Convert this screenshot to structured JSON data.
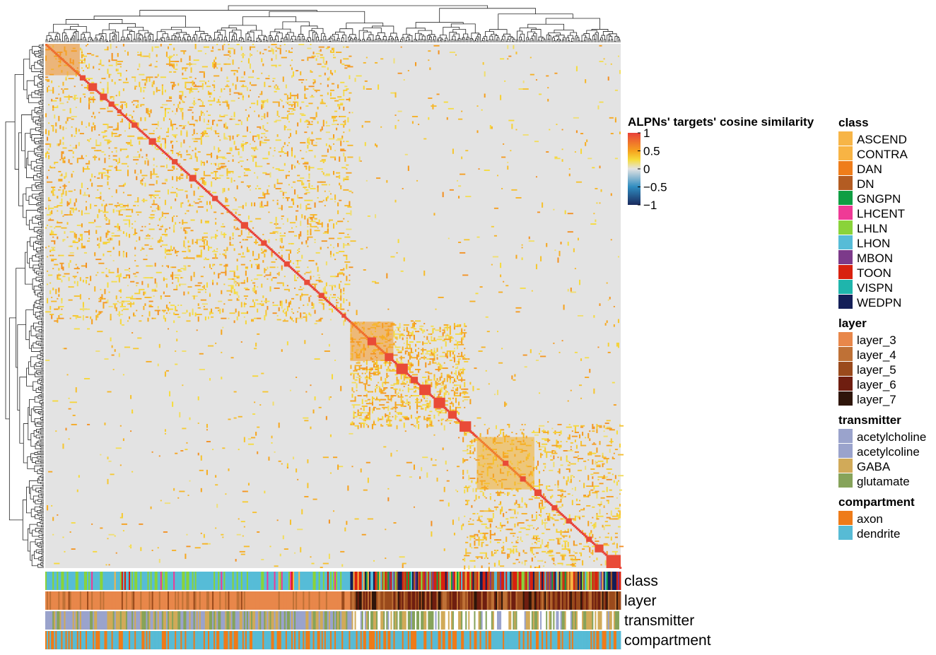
{
  "chart_data": {
    "type": "heatmap",
    "description_fields_only_from_image": true,
    "matrix_kind": "symmetric clustered similarity matrix",
    "n_neurons": 400,
    "row_dendrogram": true,
    "column_dendrogram": true,
    "colorbar": {
      "title": "ALPNs' targets' cosine similarity",
      "ticks": [
        1,
        0.5,
        0,
        -0.5,
        -1
      ],
      "tick_labels": [
        "1",
        "0.5",
        "0",
        "−0.5",
        "−1"
      ],
      "range": [
        -1,
        1
      ],
      "stops": [
        {
          "value": -1,
          "color": "#1a2a5e"
        },
        {
          "value": -0.5,
          "color": "#2f8cc0"
        },
        {
          "value": 0,
          "color": "#e3e3e3"
        },
        {
          "value": 0.25,
          "color": "#f6dc3c"
        },
        {
          "value": 0.5,
          "color": "#f6a21e"
        },
        {
          "value": 1,
          "color": "#e8413a"
        }
      ]
    },
    "diagonal_blocks": [
      {
        "start": 0,
        "size": 24,
        "value": 0.6
      },
      {
        "start": 24,
        "size": 4,
        "value": 0.95
      },
      {
        "start": 30,
        "size": 6,
        "value": 0.95
      },
      {
        "start": 38,
        "size": 5,
        "value": 0.95
      },
      {
        "start": 44,
        "size": 4,
        "value": 0.95
      },
      {
        "start": 50,
        "size": 3,
        "value": 0.95
      },
      {
        "start": 60,
        "size": 4,
        "value": 0.95
      },
      {
        "start": 72,
        "size": 5,
        "value": 0.95
      },
      {
        "start": 88,
        "size": 4,
        "value": 0.95
      },
      {
        "start": 100,
        "size": 5,
        "value": 0.95
      },
      {
        "start": 116,
        "size": 4,
        "value": 0.95
      },
      {
        "start": 136,
        "size": 5,
        "value": 0.95
      },
      {
        "start": 150,
        "size": 4,
        "value": 0.95
      },
      {
        "start": 166,
        "size": 4,
        "value": 0.95
      },
      {
        "start": 180,
        "size": 4,
        "value": 0.95
      },
      {
        "start": 190,
        "size": 4,
        "value": 0.95
      },
      {
        "start": 206,
        "size": 3,
        "value": 0.95
      },
      {
        "start": 212,
        "size": 30,
        "value": 0.55
      },
      {
        "start": 224,
        "size": 6,
        "value": 0.95
      },
      {
        "start": 236,
        "size": 6,
        "value": 0.95
      },
      {
        "start": 244,
        "size": 8,
        "value": 0.95
      },
      {
        "start": 254,
        "size": 5,
        "value": 0.95
      },
      {
        "start": 260,
        "size": 8,
        "value": 0.95
      },
      {
        "start": 270,
        "size": 8,
        "value": 0.95
      },
      {
        "start": 280,
        "size": 6,
        "value": 0.95
      },
      {
        "start": 288,
        "size": 8,
        "value": 0.95
      },
      {
        "start": 300,
        "size": 40,
        "value": 0.45
      },
      {
        "start": 318,
        "size": 4,
        "value": 0.95
      },
      {
        "start": 330,
        "size": 4,
        "value": 0.95
      },
      {
        "start": 340,
        "size": 5,
        "value": 0.95
      },
      {
        "start": 352,
        "size": 4,
        "value": 0.95
      },
      {
        "start": 362,
        "size": 4,
        "value": 0.95
      },
      {
        "start": 376,
        "size": 4,
        "value": 0.95
      },
      {
        "start": 382,
        "size": 6,
        "value": 0.95
      },
      {
        "start": 390,
        "size": 10,
        "value": 0.95
      }
    ],
    "annotation_tracks": [
      {
        "name": "class",
        "label": "class"
      },
      {
        "name": "layer",
        "label": "layer"
      },
      {
        "name": "transmitter",
        "label": "transmitter"
      },
      {
        "name": "compartment",
        "label": "compartment"
      }
    ],
    "legends": [
      {
        "title": "class",
        "entries": [
          {
            "label": "ASCEND",
            "color": "#f7b547"
          },
          {
            "label": "CONTRA",
            "color": "#f8b444"
          },
          {
            "label": "DAN",
            "color": "#ef7d1a"
          },
          {
            "label": "DN",
            "color": "#b35c22"
          },
          {
            "label": "GNGPN",
            "color": "#0f9e43"
          },
          {
            "label": "LHCENT",
            "color": "#ef3a96"
          },
          {
            "label": "LHLN",
            "color": "#8ad33a"
          },
          {
            "label": "LHON",
            "color": "#56bcd7"
          },
          {
            "label": "MBON",
            "color": "#7c3a8a"
          },
          {
            "label": "TOON",
            "color": "#d8210f"
          },
          {
            "label": "VISPN",
            "color": "#1fb5ac"
          },
          {
            "label": "WEDPN",
            "color": "#141f58"
          }
        ]
      },
      {
        "title": "layer",
        "entries": [
          {
            "label": "layer_3",
            "color": "#e8874a"
          },
          {
            "label": "layer_4",
            "color": "#bf7136"
          },
          {
            "label": "layer_5",
            "color": "#9a4a1c"
          },
          {
            "label": "layer_6",
            "color": "#6f1e10"
          },
          {
            "label": "layer_7",
            "color": "#2e150a"
          }
        ]
      },
      {
        "title": "transmitter",
        "entries": [
          {
            "label": "acetylcholine",
            "color": "#9aa3cc"
          },
          {
            "label": "acetylcoline",
            "color": "#9aa3cc"
          },
          {
            "label": "GABA",
            "color": "#d1aa59"
          },
          {
            "label": "glutamate",
            "color": "#86a35a"
          }
        ]
      },
      {
        "title": "compartment",
        "entries": [
          {
            "label": "axon",
            "color": "#ee7b19"
          },
          {
            "label": "dendrite",
            "color": "#57bbd5"
          }
        ]
      }
    ]
  }
}
